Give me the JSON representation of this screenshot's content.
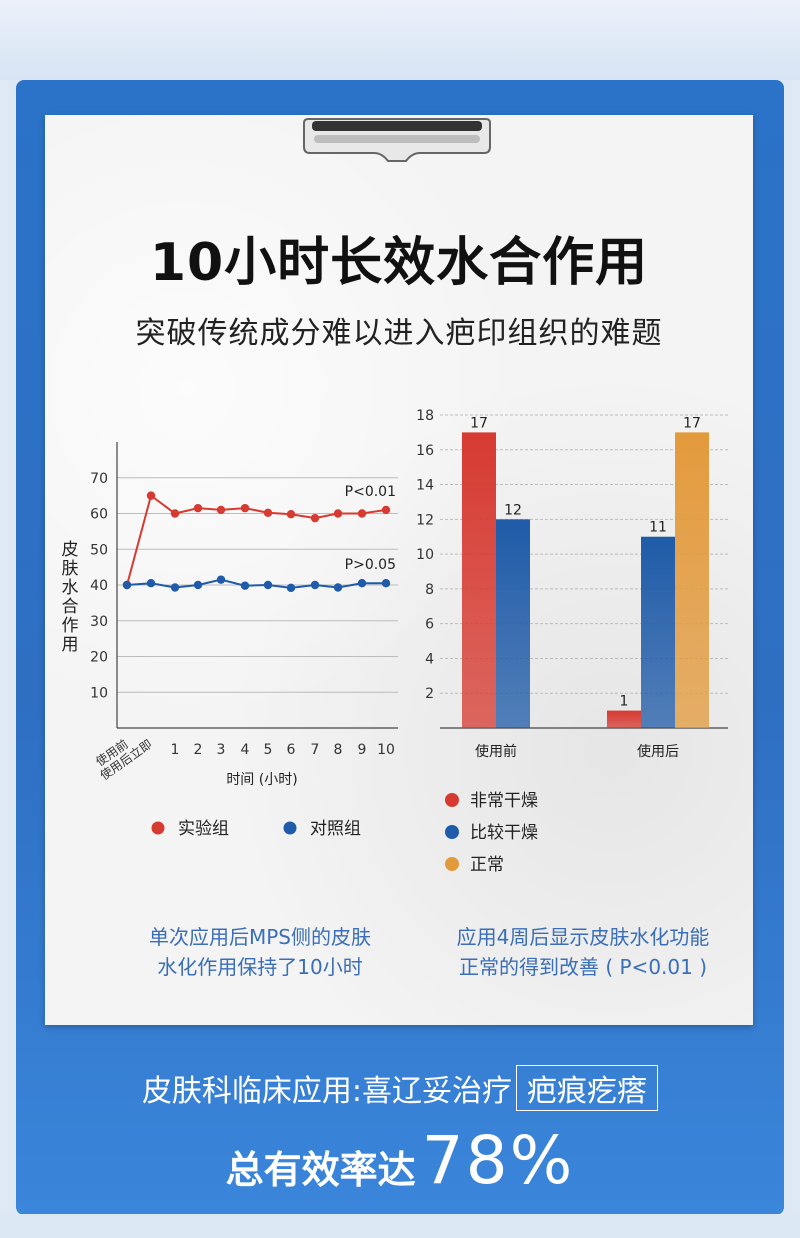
{
  "title": "10小时长效水合作用",
  "subtitle": "突破传统成分难以进入疤印组织的难题",
  "chart_data": [
    {
      "type": "line",
      "ylabel": "皮肤水合作用",
      "xlabel": "时间 (小时)",
      "x": [
        "使用前",
        "使用后立即",
        "1",
        "2",
        "3",
        "4",
        "5",
        "6",
        "7",
        "8",
        "9",
        "10"
      ],
      "ylim": [
        0,
        80
      ],
      "yticks": [
        10,
        20,
        30,
        40,
        50,
        60,
        70
      ],
      "series": [
        {
          "name": "实验组",
          "color": "#d63a31",
          "values": [
            40,
            65,
            60,
            61.5,
            61,
            61.5,
            60.2,
            59.8,
            58.7,
            60,
            60,
            61
          ],
          "annotation": "P<0.01"
        },
        {
          "name": "对照组",
          "color": "#1f5ba8",
          "values": [
            40,
            40.5,
            39.3,
            40,
            41.5,
            39.8,
            40,
            39.2,
            40,
            39.3,
            40.5,
            40.5
          ],
          "annotation": "P>0.05"
        }
      ],
      "grid": true,
      "legend_placement": "bottom"
    },
    {
      "type": "bar",
      "categories": [
        "使用前",
        "使用后"
      ],
      "ylim": [
        0,
        18
      ],
      "yticks": [
        2,
        4,
        6,
        8,
        10,
        12,
        14,
        16,
        18
      ],
      "series": [
        {
          "name": "非常干燥",
          "color": "#d63a31",
          "values": [
            17,
            1
          ]
        },
        {
          "name": "比较干燥",
          "color": "#1f5ba8",
          "values": [
            12,
            11
          ]
        },
        {
          "name": "正常",
          "color": "#e39a3c",
          "values": [
            null,
            17
          ]
        }
      ],
      "grid": true,
      "legend_placement": "bottom-left"
    }
  ],
  "caption_left": [
    "单次应用后MPS侧的皮肤",
    "水化作用保持了10小时"
  ],
  "caption_right": [
    "应用4周后显示皮肤水化功能",
    "正常的得到改善 ( P<0.01 )"
  ],
  "bottom_text": "皮肤科临床应用:喜辽妥治疗",
  "bottom_box": "疤痕疙瘩",
  "bottom_line2_prefix": "总有效率达",
  "bottom_line2_value": "78%"
}
